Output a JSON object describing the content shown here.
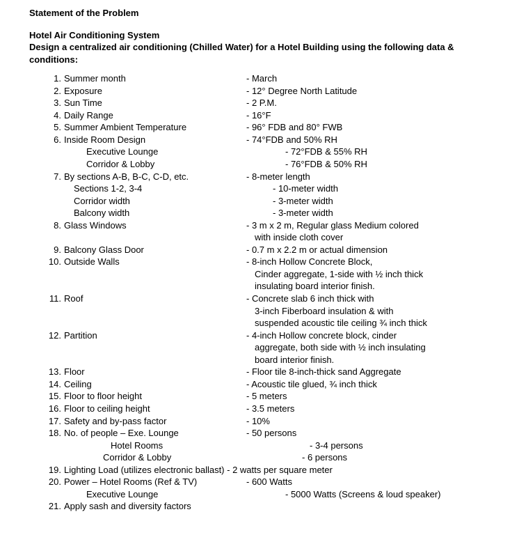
{
  "title": "Statement of the Problem",
  "subtitle_line1": "Hotel Air Conditioning System",
  "subtitle_line2": "Design a centralized air conditioning (Chilled Water) for a Hotel Building using the following data & conditions:",
  "items": [
    {
      "n": "1.",
      "label": "Summer month",
      "value": "- March"
    },
    {
      "n": "2.",
      "label": "Exposure",
      "value": "- 12° Degree North Latitude"
    },
    {
      "n": "3.",
      "label": "Sun Time",
      "value": "- 2 P.M."
    },
    {
      "n": "4.",
      "label": "Daily Range",
      "value": "- 16°F"
    },
    {
      "n": "5.",
      "label": "Summer Ambient Temperature",
      "value": "- 96° FDB and 80° FWB"
    },
    {
      "n": "6.",
      "label": "Inside Room Design",
      "value": "- 74°FDB and 50% RH"
    }
  ],
  "item6_subs": [
    {
      "label": "Executive Lounge",
      "value": "- 72°FDB & 55% RH",
      "cls": "sub-indent-1"
    },
    {
      "label": "Corridor & Lobby",
      "value": "- 76°FDB & 50% RH",
      "cls": "sub-indent-1"
    }
  ],
  "item7": {
    "n": "7.",
    "label": "By sections A-B, B-C, C-D, etc.",
    "value": "-   8-meter length"
  },
  "item7_subs": [
    {
      "label": "Sections 1-2, 3-4",
      "value": "- 10-meter width",
      "cls": "sub-indent-2"
    },
    {
      "label": "Corridor width",
      "value": "-  3-meter width",
      "cls": "sub-indent-2"
    },
    {
      "label": "Balcony width",
      "value": "-  3-meter width",
      "cls": "sub-indent-2"
    }
  ],
  "item8": {
    "n": "8.",
    "label": "Glass Windows",
    "value": "-  3 m x 2 m, Regular glass Medium colored",
    "value2": "with inside cloth cover"
  },
  "item9": {
    "n": "9.",
    "label": "Balcony Glass Door",
    "value": "-  0.7 m x 2.2 m or actual dimension"
  },
  "item10": {
    "n": "10.",
    "label": "Outside Walls",
    "value": "- 8-inch Hollow Concrete Block,",
    "value2": "Cinder aggregate, 1-side with ½ inch thick",
    "value3": "insulating board interior finish."
  },
  "item11": {
    "n": "11.",
    "label": " Roof",
    "value": "- Concrete slab 6 inch thick with",
    "value2": "3-inch Fiberboard insulation & with",
    "value3": "suspended acoustic tile ceiling ¾ inch thick"
  },
  "item12": {
    "n": "12.",
    "label": "Partition",
    "value": "- 4-inch Hollow concrete block, cinder",
    "value2": "aggregate, both side with ½ inch insulating",
    "value3": "board interior finish."
  },
  "item13": {
    "n": "13.",
    "label": "Floor",
    "value": "-  Floor tile 8-inch-thick sand Aggregate"
  },
  "item14": {
    "n": "14.",
    "label": "Ceiling",
    "value": "-  Acoustic tile glued, ¾ inch thick"
  },
  "item15": {
    "n": "15.",
    "label": "Floor to floor height",
    "value": "-  5 meters"
  },
  "item16": {
    "n": "16.",
    "label": "Floor to ceiling height",
    "value": "-  3.5 meters"
  },
  "item17": {
    "n": "17.",
    "label": "Safety and by-pass factor",
    "value": "- 10%"
  },
  "item18": {
    "n": "18.",
    "label": "No. of people – Exe. Lounge",
    "value": "- 50 persons"
  },
  "item18_subs": [
    {
      "label": "Hotel Rooms",
      "value": "- 3-4 persons",
      "cls": "sub-indent-3"
    },
    {
      "label": "Corridor & Lobby",
      "value": "- 6 persons",
      "cls": "sub-indent-4"
    }
  ],
  "item19": {
    "n": "19.",
    "label": "Lighting Load (utilizes electronic ballast)  - 2 watts per square meter",
    "value": ""
  },
  "item20": {
    "n": "20.",
    "label": "Power – Hotel Rooms (Ref & TV)",
    "value": "- 600 Watts"
  },
  "item20_subs": [
    {
      "label": "Executive Lounge",
      "value": "- 5000 Watts (Screens & loud speaker)",
      "cls": "sub-indent-1"
    }
  ],
  "item21": {
    "n": "21.",
    "label": "Apply sash and diversity factors",
    "value": ""
  }
}
